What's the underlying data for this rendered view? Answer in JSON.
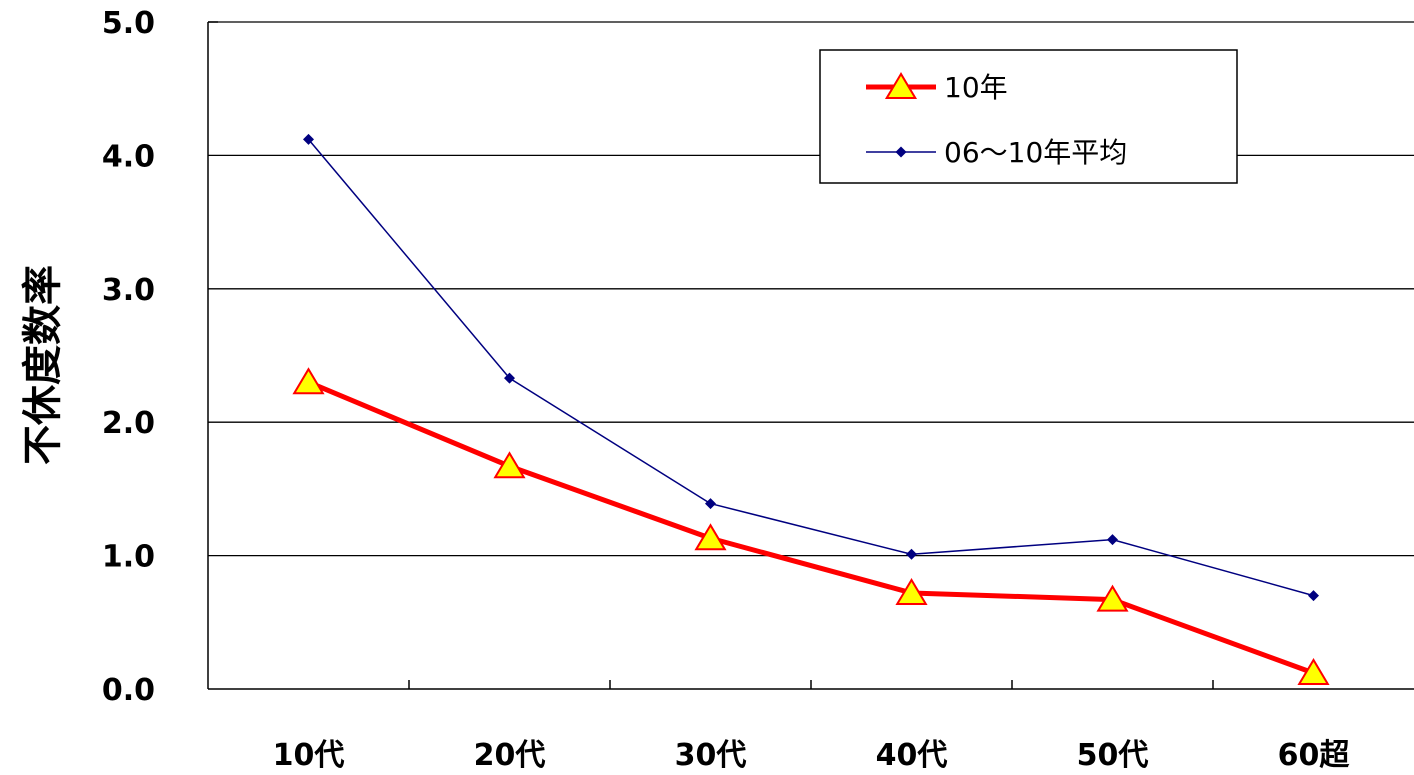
{
  "chart_data": {
    "type": "line",
    "title": "",
    "xlabel": "",
    "ylabel": "不休度数率",
    "categories": [
      "10代",
      "20代",
      "30代",
      "40代",
      "50代",
      "60超"
    ],
    "ylim": [
      0,
      5
    ],
    "yticks": [
      "0.0",
      "1.0",
      "2.0",
      "3.0",
      "4.0",
      "5.0"
    ],
    "grid": true,
    "legend_position": "top-right",
    "series": [
      {
        "name": "10年",
        "values": [
          2.3,
          1.67,
          1.13,
          0.72,
          0.67,
          0.12
        ],
        "color": "#ff0000",
        "marker": "triangle",
        "marker_color": "#ffff00"
      },
      {
        "name": "06～10年平均",
        "values": [
          4.12,
          2.33,
          1.39,
          1.01,
          1.12,
          0.7
        ],
        "color": "#000080",
        "marker": "diamond",
        "marker_color": "#000080"
      }
    ]
  }
}
